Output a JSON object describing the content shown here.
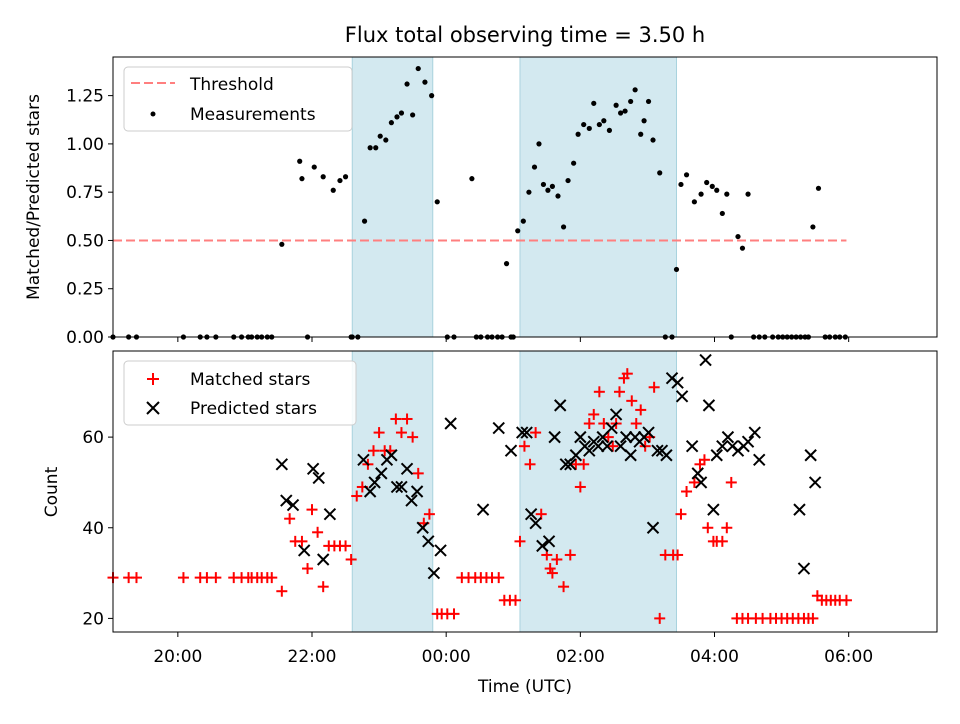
{
  "chart_data": [
    {
      "type": "scatter",
      "title": "Flux total observing time = 3.50 h",
      "xlabel": "",
      "ylabel": "Matched/Predicted stars",
      "xlim": [
        "19:02",
        "07:19"
      ],
      "ylim": [
        0,
        1.45
      ],
      "x_tick_labels": [
        "20:00",
        "22:00",
        "00:00",
        "02:00",
        "04:00",
        "06:00"
      ],
      "y_ticks": [
        0.0,
        0.25,
        0.5,
        0.75,
        1.0,
        1.25
      ],
      "y_tick_labels": [
        "0.00",
        "0.25",
        "0.50",
        "0.75",
        "1.00",
        "1.25"
      ],
      "grid": false,
      "legend_position": "upper-left",
      "shaded_intervals": [
        [
          "22:36",
          "23:48"
        ],
        [
          "01:06",
          "03:26"
        ]
      ],
      "shade_color": "#d3e9f0",
      "series": [
        {
          "name": "Threshold",
          "kind": "dashed-line",
          "color": "#ff7f7f",
          "x": [
            "19:02",
            "05:58"
          ],
          "y": [
            0.5,
            0.5
          ]
        },
        {
          "name": "Measurements",
          "kind": "dots",
          "color": "#000000",
          "x": [
            "19:02",
            "19:16",
            "19:23",
            "20:05",
            "20:20",
            "20:26",
            "20:34",
            "20:50",
            "20:57",
            "21:03",
            "21:06",
            "21:11",
            "21:15",
            "21:20",
            "21:24",
            "21:33",
            "21:49",
            "21:51",
            "21:56",
            "22:02",
            "22:10",
            "22:19",
            "22:25",
            "22:30",
            "22:35",
            "22:36",
            "22:41",
            "22:47",
            "22:52",
            "22:57",
            "23:01",
            "23:06",
            "23:11",
            "23:16",
            "23:20",
            "23:25",
            "23:30",
            "23:35",
            "23:41",
            "23:47",
            "23:52",
            "00:01",
            "00:07",
            "00:23",
            "00:27",
            "00:31",
            "00:37",
            "00:41",
            "00:46",
            "00:50",
            "00:54",
            "00:58",
            "01:00",
            "01:04",
            "01:09",
            "01:14",
            "01:19",
            "01:23",
            "01:27",
            "01:31",
            "01:35",
            "01:40",
            "01:45",
            "01:49",
            "01:54",
            "01:58",
            "02:03",
            "02:08",
            "02:12",
            "02:17",
            "02:21",
            "02:26",
            "02:32",
            "02:36",
            "02:40",
            "02:45",
            "02:49",
            "02:54",
            "02:57",
            "03:01",
            "03:05",
            "03:11",
            "03:16",
            "03:22",
            "03:26",
            "03:30",
            "03:35",
            "03:42",
            "03:48",
            "03:53",
            "03:58",
            "04:02",
            "04:07",
            "04:11",
            "04:15",
            "04:21",
            "04:25",
            "04:30",
            "04:35",
            "04:40",
            "04:45",
            "04:52",
            "04:57",
            "05:01",
            "05:05",
            "05:09",
            "05:13",
            "05:17",
            "05:21",
            "05:24",
            "05:28",
            "05:33",
            "05:39",
            "05:43",
            "05:48",
            "05:52",
            "05:57"
          ],
          "y": [
            0.0,
            0.0,
            0.0,
            0.0,
            0.0,
            0.0,
            0.0,
            0.0,
            0.0,
            0.0,
            0.0,
            0.0,
            0.0,
            0.0,
            0.0,
            0.48,
            0.91,
            0.82,
            0.0,
            0.88,
            0.83,
            0.76,
            0.81,
            0.83,
            0.0,
            0.0,
            0.0,
            0.6,
            0.98,
            0.98,
            1.04,
            1.02,
            1.11,
            1.14,
            1.16,
            1.31,
            1.15,
            1.39,
            1.32,
            1.25,
            0.7,
            0.0,
            0.0,
            0.82,
            0.0,
            0.0,
            0.0,
            0.0,
            0.0,
            0.0,
            0.38,
            0.0,
            0.0,
            0.55,
            0.6,
            0.75,
            0.88,
            1.0,
            0.79,
            0.76,
            0.78,
            0.73,
            0.57,
            0.81,
            0.9,
            1.05,
            1.1,
            1.08,
            1.21,
            1.1,
            1.12,
            1.07,
            1.2,
            1.16,
            1.17,
            1.22,
            1.28,
            1.05,
            1.12,
            1.22,
            1.02,
            0.85,
            0.0,
            0.0,
            0.35,
            0.79,
            0.84,
            0.7,
            0.74,
            0.8,
            0.78,
            0.76,
            0.64,
            0.74,
            0.0,
            0.52,
            0.46,
            0.74,
            0.0,
            0.0,
            0.0,
            0.0,
            0.0,
            0.0,
            0.0,
            0.0,
            0.0,
            0.0,
            0.0,
            0.0,
            0.57,
            0.77,
            0.0,
            0.0,
            0.0,
            0.0,
            0.0
          ]
        }
      ]
    },
    {
      "type": "scatter",
      "title": "",
      "xlabel": "Time (UTC)",
      "ylabel": "Count",
      "xlim": [
        "19:02",
        "07:19"
      ],
      "ylim": [
        17,
        79
      ],
      "x_tick_labels": [
        "20:00",
        "22:00",
        "00:00",
        "02:00",
        "04:00",
        "06:00"
      ],
      "y_ticks": [
        20,
        40,
        60
      ],
      "y_tick_labels": [
        "20",
        "40",
        "60"
      ],
      "grid": false,
      "legend_position": "upper-left",
      "shaded_intervals": [
        [
          "22:36",
          "23:48"
        ],
        [
          "01:06",
          "03:26"
        ]
      ],
      "shade_color": "#d3e9f0",
      "series": [
        {
          "name": "Matched stars",
          "kind": "plus",
          "color": "#ff0000",
          "x": [
            "19:02",
            "19:16",
            "19:23",
            "20:05",
            "20:20",
            "20:26",
            "20:34",
            "20:50",
            "20:57",
            "21:03",
            "21:06",
            "21:11",
            "21:15",
            "21:20",
            "21:24",
            "21:33",
            "21:40",
            "21:45",
            "21:51",
            "21:56",
            "22:00",
            "22:05",
            "22:10",
            "22:15",
            "22:20",
            "22:25",
            "22:30",
            "22:35",
            "22:40",
            "22:45",
            "22:50",
            "22:55",
            "23:00",
            "23:05",
            "23:10",
            "23:15",
            "23:20",
            "23:25",
            "23:30",
            "23:35",
            "23:40",
            "23:45",
            "23:52",
            "23:56",
            "00:01",
            "00:07",
            "00:14",
            "00:20",
            "00:26",
            "00:31",
            "00:36",
            "00:41",
            "00:47",
            "00:52",
            "00:57",
            "01:02",
            "01:06",
            "01:10",
            "01:15",
            "01:20",
            "01:25",
            "01:30",
            "01:33",
            "01:35",
            "01:39",
            "01:45",
            "01:51",
            "01:56",
            "02:00",
            "02:03",
            "02:08",
            "02:12",
            "02:17",
            "02:21",
            "02:25",
            "02:29",
            "02:32",
            "02:35",
            "02:39",
            "02:42",
            "02:46",
            "02:50",
            "02:54",
            "02:58",
            "03:02",
            "03:06",
            "03:11",
            "03:16",
            "03:23",
            "03:27",
            "03:30",
            "03:35",
            "03:42",
            "03:47",
            "03:51",
            "03:54",
            "03:59",
            "04:02",
            "04:07",
            "04:11",
            "04:15",
            "04:20",
            "04:25",
            "04:30",
            "04:37",
            "04:43",
            "04:50",
            "04:55",
            "05:00",
            "05:05",
            "05:10",
            "05:15",
            "05:20",
            "05:24",
            "05:28",
            "05:32",
            "05:36",
            "05:40",
            "05:44",
            "05:48",
            "05:52",
            "05:58"
          ],
          "y": [
            29,
            29,
            29,
            29,
            29,
            29,
            29,
            29,
            29,
            29,
            29,
            29,
            29,
            29,
            29,
            26,
            42,
            37,
            37,
            31,
            44,
            39,
            27,
            36,
            36,
            36,
            36,
            33,
            47,
            49,
            54,
            57,
            61,
            57,
            57,
            64,
            61,
            64,
            60,
            52,
            41,
            43,
            21,
            21,
            21,
            21,
            29,
            29,
            29,
            29,
            29,
            29,
            29,
            24,
            24,
            24,
            37,
            58,
            54,
            61,
            43,
            34,
            31,
            30,
            33,
            27,
            34,
            54,
            49,
            54,
            63,
            65,
            70,
            63,
            60,
            58,
            63,
            70,
            73,
            74,
            68,
            63,
            66,
            58,
            60,
            71,
            20,
            34,
            34,
            34,
            43,
            48,
            50,
            54,
            55,
            40,
            37,
            37,
            37,
            40,
            50,
            20,
            20,
            20,
            20,
            20,
            20,
            20,
            20,
            20,
            20,
            20,
            20,
            20,
            20,
            25,
            24,
            24,
            24,
            24,
            24,
            24
          ]
        },
        {
          "name": "Predicted stars",
          "kind": "x",
          "color": "#000000",
          "x": [
            "21:33",
            "21:37",
            "21:43",
            "21:53",
            "22:01",
            "22:06",
            "22:10",
            "22:16",
            "22:46",
            "22:52",
            "22:56",
            "23:02",
            "23:07",
            "23:11",
            "23:16",
            "23:20",
            "23:25",
            "23:29",
            "23:34",
            "23:39",
            "23:44",
            "23:49",
            "23:55",
            "00:04",
            "00:33",
            "00:47",
            "00:58",
            "01:08",
            "01:12",
            "01:16",
            "01:20",
            "01:26",
            "01:32",
            "01:37",
            "01:42",
            "01:47",
            "01:51",
            "01:56",
            "02:00",
            "02:04",
            "02:08",
            "02:12",
            "02:16",
            "02:20",
            "02:24",
            "02:28",
            "02:32",
            "02:36",
            "02:41",
            "02:45",
            "02:49",
            "02:53",
            "02:57",
            "03:01",
            "03:05",
            "03:09",
            "03:13",
            "03:17",
            "03:22",
            "03:27",
            "03:31",
            "03:40",
            "03:45",
            "03:48",
            "03:52",
            "03:55",
            "03:59",
            "04:02",
            "04:07",
            "04:12",
            "04:16",
            "04:21",
            "04:26",
            "04:30",
            "04:36",
            "04:40",
            "05:16",
            "05:20",
            "05:26",
            "05:30"
          ],
          "y": [
            54,
            46,
            45,
            35,
            53,
            51,
            33,
            43,
            55,
            48,
            50,
            52,
            55,
            56,
            49,
            49,
            53,
            46,
            48,
            40,
            37,
            30,
            35,
            63,
            44,
            62,
            57,
            61,
            61,
            43,
            41,
            36,
            37,
            60,
            67,
            54,
            54,
            56,
            60,
            58,
            57,
            59,
            58,
            60,
            58,
            62,
            65,
            58,
            60,
            56,
            60,
            59,
            60,
            61,
            40,
            57,
            57,
            56,
            73,
            72,
            69,
            58,
            52,
            50,
            77,
            67,
            44,
            56,
            58,
            60,
            58,
            57,
            58,
            59,
            61,
            55,
            44,
            31,
            56,
            50
          ]
        }
      ]
    }
  ]
}
